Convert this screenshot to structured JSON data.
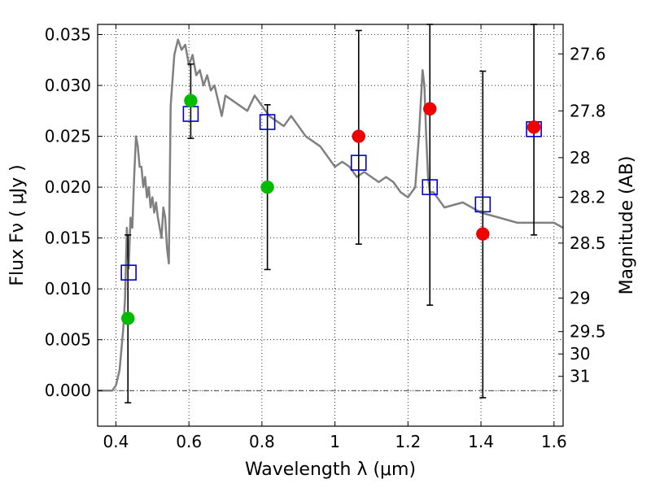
{
  "chart_data": {
    "type": "scatter",
    "xlabel": "Wavelength  λ (μm)",
    "ylabel": "Flux  Fν  ( μJy )",
    "y2label": "Magnitude (AB)",
    "xlim": [
      0.35,
      1.625
    ],
    "ylim": [
      -0.0035,
      0.036
    ],
    "grid": true,
    "x_ticks": [
      {
        "value": 0.4,
        "label": "0.4"
      },
      {
        "value": 0.6,
        "label": "0.6"
      },
      {
        "value": 0.8,
        "label": "0.8"
      },
      {
        "value": 1.0,
        "label": "1"
      },
      {
        "value": 1.2,
        "label": "1.2"
      },
      {
        "value": 1.4,
        "label": "1.4"
      },
      {
        "value": 1.6,
        "label": "1.6"
      }
    ],
    "y_ticks": [
      {
        "value": 0.0,
        "label": "0.000"
      },
      {
        "value": 0.005,
        "label": "0.005"
      },
      {
        "value": 0.01,
        "label": "0.010"
      },
      {
        "value": 0.015,
        "label": "0.015"
      },
      {
        "value": 0.02,
        "label": "0.020"
      },
      {
        "value": 0.025,
        "label": "0.025"
      },
      {
        "value": 0.03,
        "label": "0.030"
      },
      {
        "value": 0.035,
        "label": "0.035"
      }
    ],
    "y2_ticks": [
      {
        "label": "27.6",
        "flux": 0.0331
      },
      {
        "label": "27.8",
        "flux": 0.0275
      },
      {
        "label": "28",
        "flux": 0.0229
      },
      {
        "label": "28.2",
        "flux": 0.019
      },
      {
        "label": "28.5",
        "flux": 0.0145
      },
      {
        "label": "29",
        "flux": 0.0091
      },
      {
        "label": "29.5",
        "flux": 0.0058
      },
      {
        "label": "30",
        "flux": 0.0036
      },
      {
        "label": "31",
        "flux": 0.0014
      }
    ],
    "model_spectrum": {
      "color": "#808080",
      "x": [
        0.35,
        0.39,
        0.4,
        0.41,
        0.42,
        0.425,
        0.43,
        0.435,
        0.44,
        0.445,
        0.45,
        0.455,
        0.46,
        0.465,
        0.47,
        0.475,
        0.48,
        0.485,
        0.49,
        0.495,
        0.5,
        0.505,
        0.51,
        0.515,
        0.52,
        0.525,
        0.53,
        0.535,
        0.54,
        0.545,
        0.55,
        0.56,
        0.57,
        0.58,
        0.59,
        0.6,
        0.61,
        0.62,
        0.63,
        0.64,
        0.65,
        0.66,
        0.67,
        0.68,
        0.69,
        0.7,
        0.72,
        0.74,
        0.76,
        0.78,
        0.8,
        0.82,
        0.84,
        0.86,
        0.88,
        0.9,
        0.92,
        0.94,
        0.96,
        0.98,
        1.0,
        1.02,
        1.04,
        1.06,
        1.08,
        1.1,
        1.12,
        1.14,
        1.16,
        1.18,
        1.2,
        1.22,
        1.23,
        1.24,
        1.245,
        1.25,
        1.255,
        1.26,
        1.27,
        1.28,
        1.3,
        1.35,
        1.4,
        1.45,
        1.5,
        1.55,
        1.6,
        1.625
      ],
      "y": [
        0.0,
        0.0,
        0.0005,
        0.002,
        0.006,
        0.009,
        0.016,
        0.012,
        0.017,
        0.016,
        0.021,
        0.025,
        0.024,
        0.022,
        0.022,
        0.02,
        0.021,
        0.019,
        0.02,
        0.018,
        0.019,
        0.0175,
        0.0185,
        0.017,
        0.016,
        0.015,
        0.018,
        0.017,
        0.014,
        0.0125,
        0.028,
        0.033,
        0.0345,
        0.0335,
        0.034,
        0.032,
        0.033,
        0.031,
        0.0315,
        0.03,
        0.031,
        0.0295,
        0.03,
        0.0285,
        0.027,
        0.029,
        0.0285,
        0.028,
        0.0275,
        0.029,
        0.028,
        0.027,
        0.0265,
        0.026,
        0.027,
        0.026,
        0.025,
        0.0245,
        0.024,
        0.023,
        0.022,
        0.0225,
        0.022,
        0.021,
        0.0215,
        0.021,
        0.0205,
        0.021,
        0.0205,
        0.0195,
        0.019,
        0.02,
        0.025,
        0.0315,
        0.03,
        0.025,
        0.021,
        0.0195,
        0.0195,
        0.019,
        0.018,
        0.0185,
        0.0175,
        0.017,
        0.0165,
        0.0165,
        0.0165,
        0.016
      ]
    },
    "model_photometry": {
      "color": "#0000cc",
      "x": [
        0.435,
        0.605,
        0.815,
        1.065,
        1.26,
        1.405,
        1.545
      ],
      "y": [
        0.0116,
        0.0272,
        0.0264,
        0.0224,
        0.02,
        0.0183,
        0.0257
      ]
    },
    "observed_points": [
      {
        "x": 0.433,
        "y": 0.0071,
        "color": "#00bb00"
      },
      {
        "x": 0.605,
        "y": 0.0285,
        "color": "#00bb00"
      },
      {
        "x": 0.815,
        "y": 0.02,
        "color": "#00bb00"
      },
      {
        "x": 1.065,
        "y": 0.025,
        "color": "#ee0000"
      },
      {
        "x": 1.26,
        "y": 0.0277,
        "color": "#ee0000"
      },
      {
        "x": 1.405,
        "y": 0.0154,
        "color": "#ee0000"
      },
      {
        "x": 1.545,
        "y": 0.0259,
        "color": "#ee0000"
      }
    ],
    "error_bars": [
      {
        "x": 0.433,
        "low": -0.0012,
        "high": 0.0153
      },
      {
        "x": 0.605,
        "low": 0.0248,
        "high": 0.0321
      },
      {
        "x": 0.815,
        "low": 0.0119,
        "high": 0.0281
      },
      {
        "x": 1.065,
        "low": 0.0144,
        "high": 0.0354
      },
      {
        "x": 1.26,
        "low": 0.0084,
        "high": 0.036
      },
      {
        "x": 1.405,
        "low": -0.0007,
        "high": 0.0314
      },
      {
        "x": 1.545,
        "low": 0.0153,
        "high": 0.036
      }
    ]
  }
}
